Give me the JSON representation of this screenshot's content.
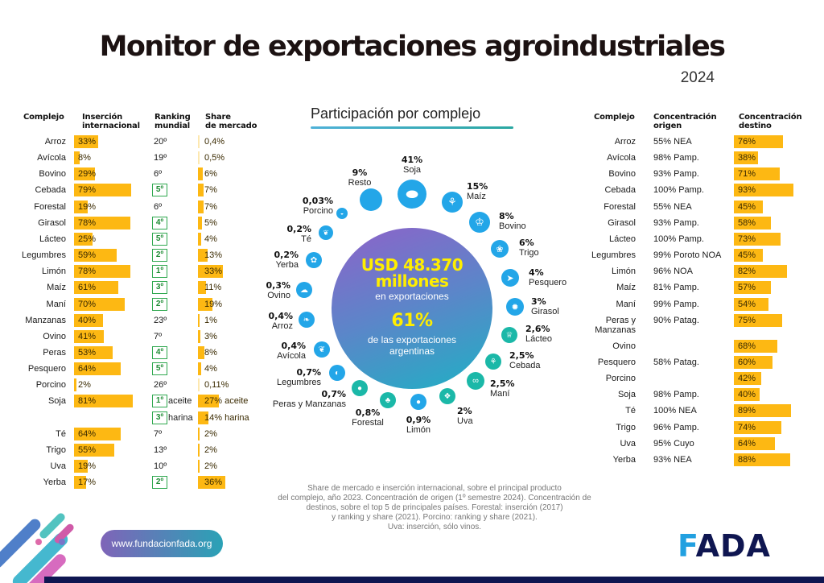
{
  "header": {
    "title": "Monitor de exportaciones agroindustriales",
    "year": "2024"
  },
  "left_table": {
    "headers": {
      "complejo": "Complejo",
      "insercion": "Inserción internacional",
      "insercion_l1": "Inserción",
      "insercion_l2": "internacional",
      "ranking_l1": "Ranking",
      "ranking_l2": "mundial",
      "share_l1": "Share",
      "share_l2": "de mercado"
    },
    "rows": [
      {
        "name": "Arroz",
        "insercion": "33%",
        "insercion_val": 33,
        "ranking": "20º",
        "ranking_highlight": false,
        "share": "0,4%",
        "share_val": 0.4
      },
      {
        "name": "Avícola",
        "insercion": "8%",
        "insercion_val": 8,
        "ranking": "19º",
        "ranking_highlight": false,
        "share": "0,5%",
        "share_val": 0.5
      },
      {
        "name": "Bovino",
        "insercion": "29%",
        "insercion_val": 29,
        "ranking": "6º",
        "ranking_highlight": false,
        "share": "6%",
        "share_val": 6
      },
      {
        "name": "Cebada",
        "insercion": "79%",
        "insercion_val": 79,
        "ranking": "5º",
        "ranking_highlight": true,
        "share": "7%",
        "share_val": 7
      },
      {
        "name": "Forestal",
        "insercion": "19%",
        "insercion_val": 19,
        "ranking": "6º",
        "ranking_highlight": false,
        "share": "7%",
        "share_val": 7
      },
      {
        "name": "Girasol",
        "insercion": "78%",
        "insercion_val": 78,
        "ranking": "4º",
        "ranking_highlight": true,
        "share": "5%",
        "share_val": 5
      },
      {
        "name": "Lácteo",
        "insercion": "25%",
        "insercion_val": 25,
        "ranking": "5º",
        "ranking_highlight": true,
        "share": "4%",
        "share_val": 4
      },
      {
        "name": "Legumbres",
        "insercion": "59%",
        "insercion_val": 59,
        "ranking": "2º",
        "ranking_highlight": true,
        "share": "13%",
        "share_val": 13
      },
      {
        "name": "Limón",
        "insercion": "78%",
        "insercion_val": 78,
        "ranking": "1º",
        "ranking_highlight": true,
        "share": "33%",
        "share_val": 33
      },
      {
        "name": "Maíz",
        "insercion": "61%",
        "insercion_val": 61,
        "ranking": "3º",
        "ranking_highlight": true,
        "share": "11%",
        "share_val": 11
      },
      {
        "name": "Maní",
        "insercion": "70%",
        "insercion_val": 70,
        "ranking": "2º",
        "ranking_highlight": true,
        "share": "19%",
        "share_val": 19
      },
      {
        "name": "Manzanas",
        "insercion": "40%",
        "insercion_val": 40,
        "ranking": "23º",
        "ranking_highlight": false,
        "share": "1%",
        "share_val": 1
      },
      {
        "name": "Ovino",
        "insercion": "41%",
        "insercion_val": 41,
        "ranking": "7º",
        "ranking_highlight": false,
        "share": "3%",
        "share_val": 3
      },
      {
        "name": "Peras",
        "insercion": "53%",
        "insercion_val": 53,
        "ranking": "4º",
        "ranking_highlight": true,
        "share": "8%",
        "share_val": 8
      },
      {
        "name": "Pesquero",
        "insercion": "64%",
        "insercion_val": 64,
        "ranking": "5º",
        "ranking_highlight": true,
        "share": "4%",
        "share_val": 4
      },
      {
        "name": "Porcino",
        "insercion": "2%",
        "insercion_val": 2,
        "ranking": "26º",
        "ranking_highlight": false,
        "share": "0,11%",
        "share_val": 0.11
      },
      {
        "name": "Soja",
        "insercion": "81%",
        "insercion_val": 81,
        "ranking": "1º",
        "ranking_extra": "aceite",
        "ranking_highlight": true,
        "share": "27%",
        "share_extra": "aceite",
        "share_val": 27
      },
      {
        "name": "",
        "insercion": "",
        "insercion_val": null,
        "ranking": "3º",
        "ranking_extra": "harina",
        "ranking_highlight": true,
        "share": "14%",
        "share_extra": "harina",
        "share_val": 14
      },
      {
        "name": "Té",
        "insercion": "64%",
        "insercion_val": 64,
        "ranking": "7º",
        "ranking_highlight": false,
        "share": "2%",
        "share_val": 2
      },
      {
        "name": "Trigo",
        "insercion": "55%",
        "insercion_val": 55,
        "ranking": "13º",
        "ranking_highlight": false,
        "share": "2%",
        "share_val": 2
      },
      {
        "name": "Uva",
        "insercion": "19%",
        "insercion_val": 19,
        "ranking": "10º",
        "ranking_highlight": false,
        "share": "2%",
        "share_val": 2
      },
      {
        "name": "Yerba",
        "insercion": "17%",
        "insercion_val": 17,
        "ranking": "2º",
        "ranking_highlight": true,
        "share": "36%",
        "share_val": 36
      }
    ]
  },
  "right_table": {
    "headers": {
      "complejo": "Complejo",
      "origen_l1": "Concentración",
      "origen_l2": "origen",
      "destino_l1": "Concentración",
      "destino_l2": "destino"
    },
    "rows": [
      {
        "name": "Arroz",
        "origen": "55% NEA",
        "destino": "76%",
        "destino_val": 76
      },
      {
        "name": "Avícola",
        "origen": "98% Pamp.",
        "destino": "38%",
        "destino_val": 38
      },
      {
        "name": "Bovino",
        "origen": "93% Pamp.",
        "destino": "71%",
        "destino_val": 71
      },
      {
        "name": "Cebada",
        "origen": "100% Pamp.",
        "destino": "93%",
        "destino_val": 93
      },
      {
        "name": "Forestal",
        "origen": "55% NEA",
        "destino": "45%",
        "destino_val": 45
      },
      {
        "name": "Girasol",
        "origen": "93% Pamp.",
        "destino": "58%",
        "destino_val": 58
      },
      {
        "name": "Lácteo",
        "origen": "100% Pamp.",
        "destino": "73%",
        "destino_val": 73
      },
      {
        "name": "Legumbres",
        "origen": "99% Poroto NOA",
        "destino": "45%",
        "destino_val": 45
      },
      {
        "name": "Limón",
        "origen": "96% NOA",
        "destino": "82%",
        "destino_val": 82
      },
      {
        "name": "Maíz",
        "origen": "81% Pamp.",
        "destino": "57%",
        "destino_val": 57
      },
      {
        "name": "Maní",
        "origen": "99% Pamp.",
        "destino": "54%",
        "destino_val": 54
      },
      {
        "name": "Peras y Manzanas",
        "name_l1": "Peras y",
        "name_l2": "Manzanas",
        "origen": "90% Patag.",
        "destino": "75%",
        "destino_val": 75
      },
      {
        "name": "Ovino",
        "origen": "",
        "destino": "68%",
        "destino_val": 68
      },
      {
        "name": "Pesquero",
        "origen": "58% Patag.",
        "destino": "60%",
        "destino_val": 60
      },
      {
        "name": "Porcino",
        "origen": "",
        "destino": "42%",
        "destino_val": 42
      },
      {
        "name": "Soja",
        "origen": "98% Pamp.",
        "destino": "40%",
        "destino_val": 40
      },
      {
        "name": "Té",
        "origen": "100% NEA",
        "destino": "89%",
        "destino_val": 89
      },
      {
        "name": "Trigo",
        "origen": "96% Pamp.",
        "destino": "74%",
        "destino_val": 74
      },
      {
        "name": "Uva",
        "origen": "95% Cuyo",
        "destino": "64%",
        "destino_val": 64
      },
      {
        "name": "Yerba",
        "origen": "93% NEA",
        "destino": "88%",
        "destino_val": 88
      }
    ]
  },
  "center": {
    "title": "Participación por complejo",
    "total_amount": "USD 48.370",
    "total_unit": "millones",
    "total_caption": "en exportaciones",
    "share_pct": "61%",
    "share_caption_l1": "de las exportaciones",
    "share_caption_l2": "argentinas"
  },
  "chart_data": {
    "type": "pie",
    "title": "Participación por complejo",
    "unit": "% of agroindustrial exports",
    "slices": [
      {
        "label": "Soja",
        "value": 41,
        "display": "41%",
        "icon": "soybean-icon"
      },
      {
        "label": "Maíz",
        "value": 15,
        "display": "15%",
        "icon": "corn-icon"
      },
      {
        "label": "Bovino",
        "value": 8,
        "display": "8%",
        "icon": "cow-icon"
      },
      {
        "label": "Trigo",
        "value": 6,
        "display": "6%",
        "icon": "wheat-icon"
      },
      {
        "label": "Pesquero",
        "value": 4,
        "display": "4%",
        "icon": "fish-icon"
      },
      {
        "label": "Girasol",
        "value": 3,
        "display": "3%",
        "icon": "sunflower-icon"
      },
      {
        "label": "Lácteo",
        "value": 2.6,
        "display": "2,6%",
        "icon": "dairy-cow-icon"
      },
      {
        "label": "Cebada",
        "value": 2.5,
        "display": "2,5%",
        "icon": "barley-icon"
      },
      {
        "label": "Maní",
        "value": 2.5,
        "display": "2,5%",
        "icon": "peanut-icon"
      },
      {
        "label": "Uva",
        "value": 2,
        "display": "2%",
        "icon": "grape-icon"
      },
      {
        "label": "Limón",
        "value": 0.9,
        "display": "0,9%",
        "icon": "lemon-icon"
      },
      {
        "label": "Forestal",
        "value": 0.8,
        "display": "0,8%",
        "icon": "trees-icon"
      },
      {
        "label": "Peras y Manzanas",
        "value": 0.7,
        "display": "0,7%",
        "icon": "apple-icon"
      },
      {
        "label": "Legumbres",
        "value": 0.7,
        "display": "0,7%",
        "icon": "bean-icon"
      },
      {
        "label": "Avícola",
        "value": 0.4,
        "display": "0,4%",
        "icon": "chicken-icon"
      },
      {
        "label": "Arroz",
        "value": 0.4,
        "display": "0,4%",
        "icon": "rice-icon"
      },
      {
        "label": "Ovino",
        "value": 0.3,
        "display": "0,3%",
        "icon": "sheep-icon"
      },
      {
        "label": "Yerba",
        "value": 0.2,
        "display": "0,2%",
        "icon": "yerba-icon"
      },
      {
        "label": "Té",
        "value": 0.2,
        "display": "0,2%",
        "icon": "tea-leaf-icon"
      },
      {
        "label": "Porcino",
        "value": 0.03,
        "display": "0,03%",
        "icon": "pig-icon"
      },
      {
        "label": "Resto",
        "value": 9,
        "display": "9%",
        "icon": "circle-icon"
      }
    ]
  },
  "footnote": [
    "Share de mercado e inserción internacional, sobre el principal producto",
    "del complejo, año 2023. Concentración de origen (1º semestre 2024). Concentración de",
    "destinos, sobre el top 5 de principales países. Forestal: inserción (2017)",
    "y ranking y share (2021). Porcino: ranking y share (2021).",
    "Uva: inserción, sólo vinos."
  ],
  "footer": {
    "url": "www.fundacionfada.org",
    "logo_text": "FADA",
    "colors": {
      "navy": "#0f1651",
      "accent_blue": "#22a0e0",
      "bar_yellow": "#fdb813",
      "rank_green": "#2fa84f"
    }
  }
}
